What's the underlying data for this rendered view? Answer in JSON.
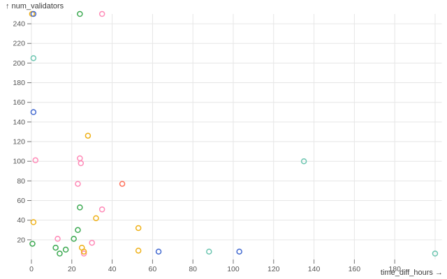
{
  "chart_data": {
    "type": "scatter",
    "title": "",
    "xlabel": "time_diff_hours",
    "ylabel": "num_validators",
    "xlabel_display": "time_diff_hours →",
    "ylabel_display": "↑ num_validators",
    "xlim": [
      0,
      203.3
    ],
    "ylim": [
      0,
      250
    ],
    "x_ticks": [
      0,
      20,
      40,
      60,
      80,
      100,
      120,
      140,
      160,
      180
    ],
    "x_grid": [
      0,
      20,
      40,
      60,
      80,
      100,
      120,
      140,
      160,
      180,
      200
    ],
    "y_ticks": [
      20,
      40,
      60,
      80,
      100,
      120,
      140,
      160,
      180,
      200,
      220,
      240
    ],
    "y_grid": [
      20,
      40,
      60,
      80,
      100,
      120,
      140,
      160,
      180,
      200,
      220,
      240
    ],
    "grid": true,
    "legend": false,
    "marker": "hollow-circle",
    "series": [
      {
        "name": "pink",
        "color": "#ff8ab7",
        "points": [
          [
            35,
            250
          ],
          [
            2,
            101
          ],
          [
            24,
            103
          ],
          [
            24.5,
            98
          ],
          [
            23,
            77
          ],
          [
            35,
            51
          ],
          [
            13,
            21
          ],
          [
            30,
            17
          ],
          [
            26,
            6
          ]
        ]
      },
      {
        "name": "yellow",
        "color": "#efb118",
        "points": [
          [
            0.3,
            250
          ],
          [
            1,
            38
          ],
          [
            28,
            126
          ],
          [
            32,
            42
          ],
          [
            25,
            12
          ],
          [
            26,
            8
          ],
          [
            53,
            32
          ],
          [
            53,
            9
          ]
        ]
      },
      {
        "name": "green",
        "color": "#3ca951",
        "points": [
          [
            24,
            250
          ],
          [
            0.5,
            16
          ],
          [
            24,
            53
          ],
          [
            23,
            30
          ],
          [
            21,
            21
          ],
          [
            12,
            12
          ],
          [
            17,
            10
          ],
          [
            14,
            6
          ]
        ]
      },
      {
        "name": "orange",
        "color": "#ff725c",
        "points": [
          [
            45,
            77
          ]
        ]
      },
      {
        "name": "teal",
        "color": "#6cc5b0",
        "points": [
          [
            1,
            205
          ],
          [
            135,
            100
          ],
          [
            88,
            8
          ],
          [
            200,
            6
          ]
        ]
      },
      {
        "name": "blue",
        "color": "#4269d0",
        "points": [
          [
            1,
            250
          ],
          [
            1,
            150
          ],
          [
            63,
            8
          ],
          [
            103,
            8
          ]
        ]
      }
    ]
  },
  "style": {
    "background": "#ffffff",
    "grid_color": "#e6e6e6",
    "tick_color": "#737373",
    "tick_label_color": "#545454",
    "axis_title_color": "#3b3b3b"
  }
}
